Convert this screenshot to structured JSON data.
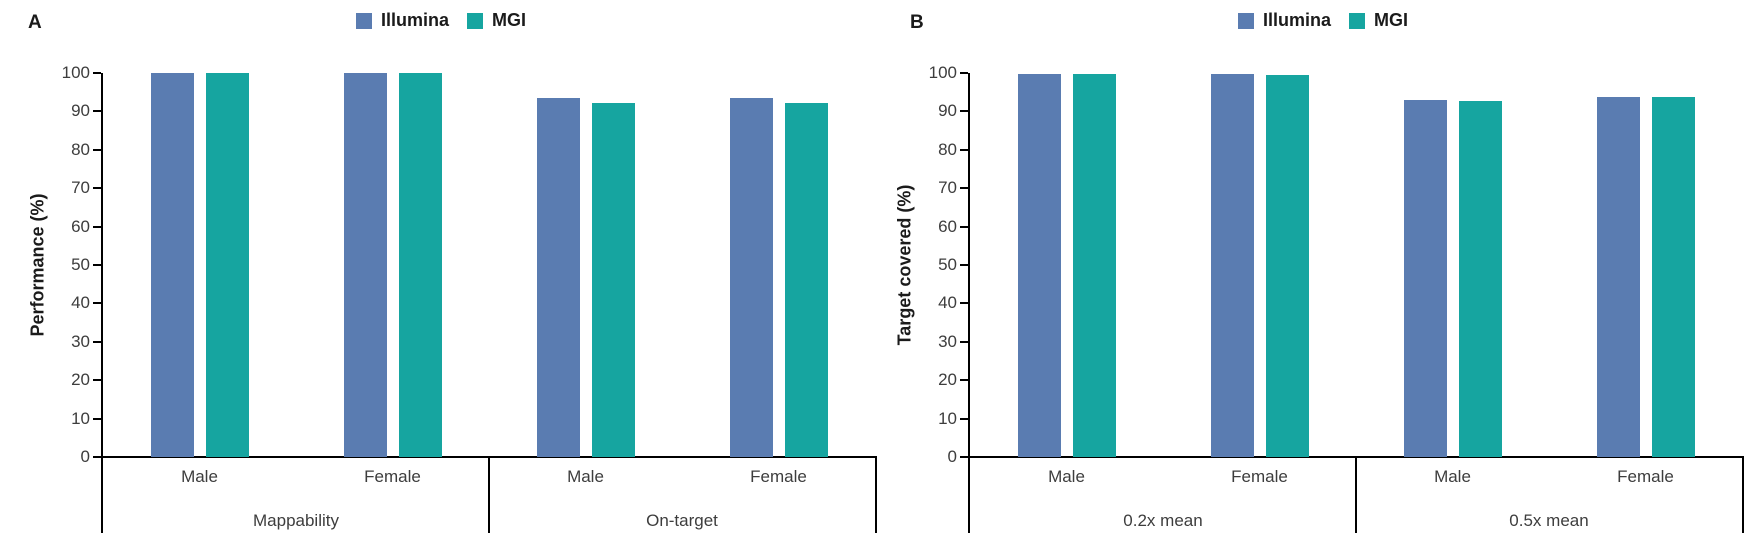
{
  "legend": {
    "items": [
      {
        "label": "Illumina",
        "color": "#5A7CB1"
      },
      {
        "label": "MGI",
        "color": "#16A5A0"
      }
    ]
  },
  "chart_data": [
    {
      "type": "bar",
      "panel_label": "A",
      "ylabel": "Performance (%)",
      "ylim": [
        0,
        100
      ],
      "ytick_step": 10,
      "grid": false,
      "legend_position": "top-center",
      "group_labels": [
        "Mappability",
        "On-target"
      ],
      "categories": [
        "Male",
        "Female",
        "Male",
        "Female"
      ],
      "series": [
        {
          "name": "Illumina",
          "color": "#5A7CB1",
          "values": [
            100,
            100,
            93.6,
            93.5
          ]
        },
        {
          "name": "MGI",
          "color": "#16A5A0",
          "values": [
            100,
            100,
            92.1,
            92.1
          ]
        }
      ]
    },
    {
      "type": "bar",
      "panel_label": "B",
      "ylabel": "Target covered (%)",
      "ylim": [
        0,
        100
      ],
      "ytick_step": 10,
      "grid": false,
      "legend_position": "top-center",
      "group_labels": [
        "0.2x mean",
        "0.5x mean"
      ],
      "categories": [
        "Male",
        "Female",
        "Male",
        "Female"
      ],
      "series": [
        {
          "name": "Illumina",
          "color": "#5A7CB1",
          "values": [
            99.7,
            99.7,
            93.0,
            93.8
          ]
        },
        {
          "name": "MGI",
          "color": "#16A5A0",
          "values": [
            99.7,
            99.5,
            92.8,
            93.8
          ]
        }
      ]
    }
  ]
}
